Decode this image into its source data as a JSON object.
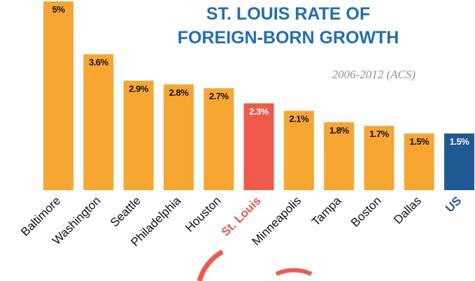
{
  "chart_data": {
    "type": "bar",
    "title": [
      "ST. LOUIS RATE OF",
      "FOREIGN-BORN GROWTH"
    ],
    "subtitle": "2006-2012 (ACS)",
    "categories": [
      "Baltimore",
      "Washington",
      "Seattle",
      "Philadelphia",
      "Houston",
      "St. Louis",
      "Minneapolis",
      "Tampa",
      "Boston",
      "Dallas",
      "US"
    ],
    "values": [
      5,
      3.6,
      2.9,
      2.8,
      2.7,
      2.3,
      2.1,
      1.8,
      1.7,
      1.5,
      1.5
    ],
    "value_labels": [
      "5%",
      "3.6%",
      "2.9%",
      "2.8%",
      "2.7%",
      "2.3%",
      "2.1%",
      "1.8%",
      "1.7%",
      "1.5%",
      "1.5%"
    ],
    "color": "#f7a731",
    "colors": [
      "#f7a731",
      "#f7a731",
      "#f7a731",
      "#f7a731",
      "#f7a731",
      "#f05a4a",
      "#f7a731",
      "#f7a731",
      "#f7a731",
      "#f7a731",
      "#1f5a96"
    ],
    "ylim": [
      0,
      5
    ]
  }
}
